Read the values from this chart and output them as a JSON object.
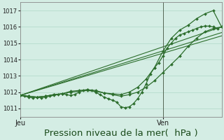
{
  "bg_color": "#d4ede4",
  "grid_color": "#b0d8c8",
  "line_color": "#2d6e2d",
  "xlabel": "Pression niveau de la mer(  hPa )",
  "xlabel_fontsize": 9.5,
  "ylim": [
    1010.5,
    1017.5
  ],
  "yticks": [
    1011,
    1012,
    1013,
    1014,
    1015,
    1016,
    1017
  ],
  "xtick_labels": [
    "Jeu",
    "Ven"
  ],
  "xtick_positions": [
    0,
    34
  ],
  "xlim": [
    0,
    48
  ],
  "vline_x": 34,
  "figsize": [
    3.2,
    2.0
  ],
  "dpi": 100,
  "line_jagged_x": [
    0,
    1,
    2,
    3,
    4,
    5,
    6,
    7,
    8,
    9,
    10,
    11,
    12,
    13,
    14,
    15,
    16,
    17,
    18,
    19,
    20,
    21,
    22,
    23,
    24,
    25,
    26,
    27,
    28,
    29,
    30,
    31,
    32,
    33,
    34,
    35,
    36,
    37,
    38,
    39,
    40,
    41,
    42,
    43,
    44,
    45,
    46,
    47,
    48
  ],
  "line_jagged_y": [
    1011.8,
    1011.75,
    1011.7,
    1011.65,
    1011.7,
    1011.65,
    1011.7,
    1011.75,
    1011.8,
    1011.85,
    1011.9,
    1011.85,
    1011.8,
    1011.85,
    1012.0,
    1012.1,
    1012.15,
    1012.1,
    1012.0,
    1011.85,
    1011.7,
    1011.6,
    1011.5,
    1011.4,
    1011.1,
    1011.05,
    1011.1,
    1011.3,
    1011.6,
    1012.0,
    1012.5,
    1013.1,
    1013.5,
    1013.8,
    1014.2,
    1014.7,
    1015.0,
    1015.3,
    1015.5,
    1015.6,
    1015.7,
    1015.8,
    1015.9,
    1016.0,
    1016.05,
    1016.05,
    1016.0,
    1015.9,
    1016.0
  ],
  "line_smooth_x": [
    0,
    2,
    4,
    6,
    8,
    10,
    12,
    14,
    16,
    18,
    20,
    22,
    24,
    26,
    28,
    30,
    32,
    34,
    36,
    38,
    40,
    42,
    44,
    46,
    48
  ],
  "line_smooth_y": [
    1011.8,
    1011.75,
    1011.7,
    1011.75,
    1011.85,
    1011.9,
    1012.0,
    1012.05,
    1012.1,
    1012.05,
    1011.95,
    1011.85,
    1011.75,
    1011.85,
    1012.0,
    1012.3,
    1012.7,
    1013.2,
    1013.7,
    1014.2,
    1014.8,
    1015.3,
    1015.7,
    1015.9,
    1016.0
  ],
  "line_trend1_x": [
    0,
    48
  ],
  "line_trend1_y": [
    1011.8,
    1016.0
  ],
  "line_trend2_x": [
    0,
    48
  ],
  "line_trend2_y": [
    1011.8,
    1015.65
  ],
  "line_trend3_x": [
    0,
    48
  ],
  "line_trend3_y": [
    1011.8,
    1015.45
  ],
  "line_upper_x": [
    0,
    2,
    4,
    6,
    8,
    10,
    12,
    14,
    16,
    18,
    20,
    22,
    24,
    26,
    28,
    30,
    32,
    34,
    36,
    38,
    40,
    42,
    44,
    46,
    48
  ],
  "line_upper_y": [
    1011.8,
    1011.75,
    1011.7,
    1011.75,
    1011.85,
    1011.9,
    1012.05,
    1012.1,
    1012.15,
    1012.1,
    1011.95,
    1011.9,
    1011.85,
    1012.0,
    1012.3,
    1012.8,
    1013.5,
    1014.5,
    1015.3,
    1015.8,
    1016.1,
    1016.5,
    1016.8,
    1017.0,
    1016.0
  ]
}
